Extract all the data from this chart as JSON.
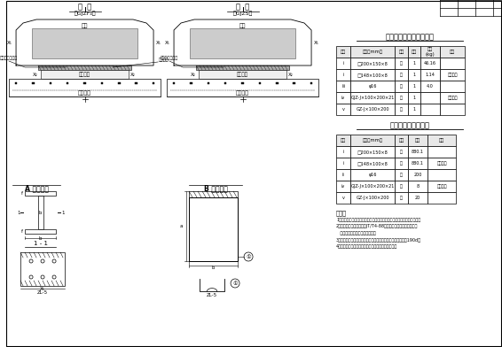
{
  "bg_color": "#ffffff",
  "title_table1": "一个墩端支垫材料数量表",
  "title_table2": "全桥支座材料数量表",
  "table1_headers": [
    "编号",
    "规格（mm）",
    "单位",
    "件数",
    "重量\n(kg)",
    "备注"
  ],
  "table1_rows": [
    [
      "i",
      "□200×150×8",
      "块",
      "1",
      "46.16",
      ""
    ],
    [
      "i",
      "□148×100×8",
      "块",
      "1",
      "1.14",
      "橡胶专用"
    ],
    [
      "iii",
      "φ16",
      "块",
      "1",
      "4.0",
      ""
    ],
    [
      "iv",
      "GJZ-J×100×200×21",
      "套",
      "1",
      "",
      "橡胶专用"
    ],
    [
      "v",
      "GZ-J×100×200",
      "块",
      "1",
      "",
      ""
    ]
  ],
  "table2_headers": [
    "编号",
    "规格（mm）",
    "单位",
    "数量",
    "备注"
  ],
  "table2_rows": [
    [
      "i",
      "□200×150×8",
      "块",
      "880.1",
      ""
    ],
    [
      "i",
      "□148×100×8",
      "块",
      "880.1",
      "橡胶专用"
    ],
    [
      "ii",
      "φ16",
      "块",
      "200",
      ""
    ],
    [
      "iv",
      "GJZ-J×100×200×21",
      "套",
      "8",
      "橡胶专用"
    ],
    [
      "v",
      "GZ-J×100×200",
      "块",
      "20",
      ""
    ]
  ],
  "notes_title": "附注：",
  "notes": [
    "1．图中尺寸均调整成符合有关规范支垫以毫米为单位处，其余以厘米计。",
    "2．支座的技术性能应符合JT/T4-88《公路桥梁板式橡胶支座》的",
    "   要求，支承板按厂家要求选型。",
    "3．钢垫板型与周边防腐涂料处理是采用单量涂抹，漆膜不不于190d。",
    "4．支座不锈钢板与橡胶支座橡胶面之间不锈钢拌接。"
  ]
}
